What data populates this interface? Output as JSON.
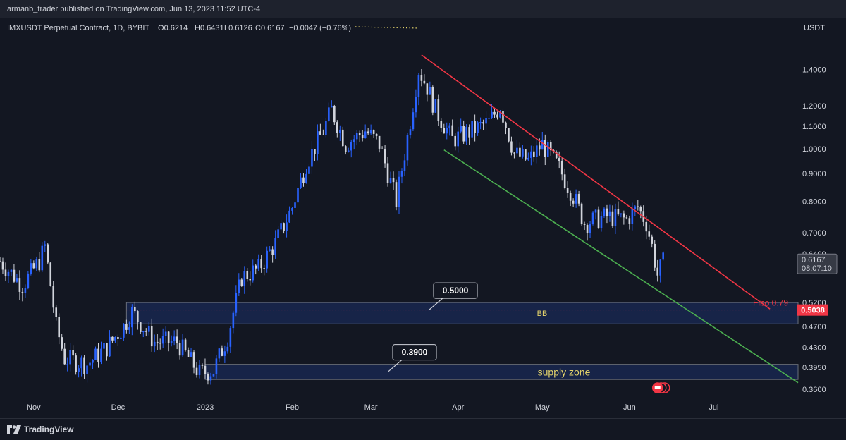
{
  "header": {
    "published": "armanb_trader published on TradingView.com, Jun 13, 2023 11:52 UTC-4"
  },
  "legend": {
    "symbol": "IMXUSDT Perpetual Contract, 1D, BYBIT",
    "o_label": "O",
    "o": "0.6214",
    "h_label": "H",
    "h": "0.6431",
    "l_label": "L",
    "l": "0.6126",
    "c_label": "C",
    "c": "0.6167",
    "change": "−0.0047 (−0.76%)"
  },
  "footer": {
    "brand": "TradingView"
  },
  "colors": {
    "background": "#131722",
    "up_candle": "#2962ff",
    "down_candle": "#d1d4dc",
    "resistance_line": "#f23645",
    "support_line": "#4caf50",
    "zone_fill": "#1a2a55",
    "fibo": "#f23645"
  },
  "chart_data": {
    "type": "candlestick",
    "currency": "USDT",
    "y_scale": "log",
    "ylim": [
      0.345,
      1.72
    ],
    "y_ticks": [
      "1.4000",
      "1.2000",
      "1.1000",
      "1.0000",
      "0.9000",
      "0.8000",
      "0.7000",
      "0.6400",
      "0.5200",
      "0.4700",
      "0.4300",
      "0.3950",
      "0.3600"
    ],
    "x_ticks": [
      "Nov",
      "Dec",
      "2023",
      "Feb",
      "Mar",
      "Apr",
      "May",
      "Jun",
      "Jul"
    ],
    "x_tick_dates": [
      "2022-11-01",
      "2022-12-01",
      "2023-01-01",
      "2023-02-01",
      "2023-03-01",
      "2023-04-01",
      "2023-05-01",
      "2023-06-01",
      "2023-07-01"
    ],
    "x_range": [
      "2022-10-20",
      "2023-07-31"
    ],
    "last_price": {
      "value": "0.6167",
      "countdown": "08:07:10"
    },
    "fibo": {
      "label": "Fibo 0.79",
      "value": "0.5038"
    },
    "zones": [
      {
        "name": "BB",
        "top": 0.52,
        "bottom": 0.475,
        "start": "2022-12-04",
        "callout": "0.5000"
      },
      {
        "name": "supply zone",
        "top": 0.4,
        "bottom": 0.375,
        "start": "2023-01-01",
        "callout": "0.3900"
      }
    ],
    "trendlines": [
      {
        "name": "resistance",
        "from": [
          "2023-03-19",
          1.49
        ],
        "to": [
          "2023-07-21",
          0.506
        ]
      },
      {
        "name": "support",
        "from": [
          "2023-03-27",
          0.995
        ],
        "to": [
          "2023-07-31",
          0.37
        ]
      }
    ],
    "series": [
      {
        "segments": [
          [
            "2022-10-20",
            0.62
          ],
          [
            "2022-10-28",
            0.56
          ],
          [
            "2022-11-03",
            0.62
          ],
          [
            "2022-11-05",
            0.66
          ],
          [
            "2022-11-07",
            0.56
          ],
          [
            "2022-11-09",
            0.47
          ],
          [
            "2022-11-12",
            0.41
          ],
          [
            "2022-11-20",
            0.4
          ],
          [
            "2022-11-27",
            0.43
          ],
          [
            "2022-12-03",
            0.47
          ],
          [
            "2022-12-06",
            0.5
          ],
          [
            "2022-12-14",
            0.44
          ],
          [
            "2022-12-22",
            0.44
          ],
          [
            "2022-12-30",
            0.385
          ],
          [
            "2023-01-04",
            0.39
          ],
          [
            "2023-01-09",
            0.45
          ],
          [
            "2023-01-14",
            0.58
          ],
          [
            "2023-01-20",
            0.6
          ],
          [
            "2023-01-26",
            0.67
          ],
          [
            "2023-02-01",
            0.78
          ],
          [
            "2023-02-06",
            0.94
          ],
          [
            "2023-02-12",
            1.08
          ],
          [
            "2023-02-15",
            1.18
          ],
          [
            "2023-02-20",
            1.02
          ],
          [
            "2023-02-27",
            1.08
          ],
          [
            "2023-03-04",
            1.02
          ],
          [
            "2023-03-10",
            0.8
          ],
          [
            "2023-03-14",
            1.05
          ],
          [
            "2023-03-18",
            1.4
          ],
          [
            "2023-03-21",
            1.3
          ],
          [
            "2023-03-24",
            1.18
          ],
          [
            "2023-03-30",
            1.04
          ],
          [
            "2023-04-06",
            1.08
          ],
          [
            "2023-04-12",
            1.12
          ],
          [
            "2023-04-16",
            1.2
          ],
          [
            "2023-04-21",
            0.98
          ],
          [
            "2023-04-26",
            0.95
          ],
          [
            "2023-05-01",
            1.02
          ],
          [
            "2023-05-07",
            0.92
          ],
          [
            "2023-05-12",
            0.82
          ],
          [
            "2023-05-16",
            0.73
          ],
          [
            "2023-05-24",
            0.75
          ],
          [
            "2023-05-31",
            0.74
          ],
          [
            "2023-06-04",
            0.78
          ],
          [
            "2023-06-07",
            0.73
          ],
          [
            "2023-06-09",
            0.66
          ],
          [
            "2023-06-11",
            0.585
          ],
          [
            "2023-06-13",
            0.6167
          ]
        ]
      }
    ]
  }
}
